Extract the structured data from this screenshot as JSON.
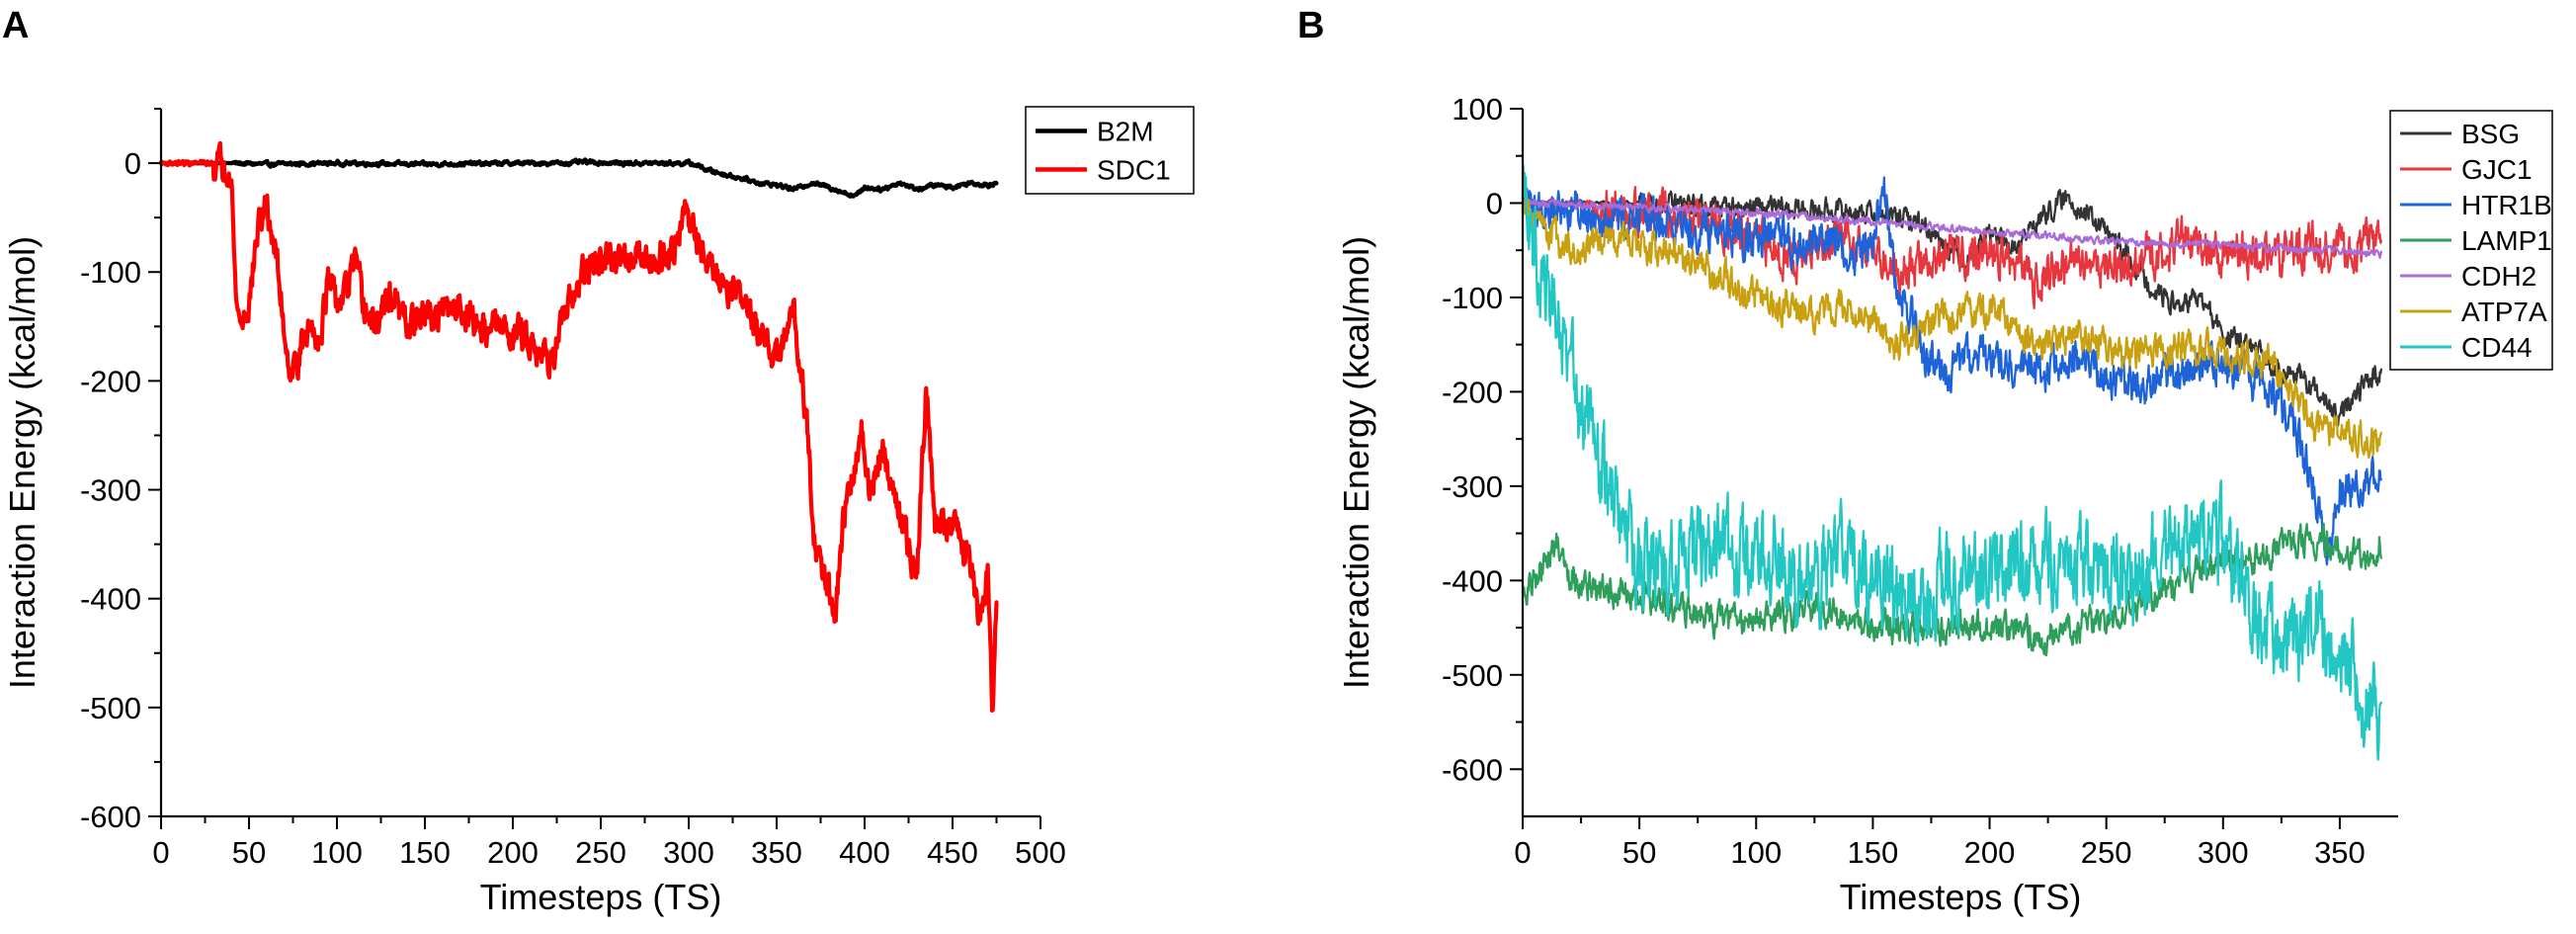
{
  "chart_data": [
    {
      "panel": "A",
      "type": "line",
      "title": "",
      "xlabel": "Timesteps (TS)",
      "ylabel": "Interaction Energy (kcal/mol)",
      "xlim": [
        0,
        500
      ],
      "ylim": [
        -600,
        50
      ],
      "xticks": [
        "0",
        "50",
        "100",
        "150",
        "200",
        "250",
        "300",
        "350",
        "400",
        "450",
        "500"
      ],
      "yticks": [
        "0",
        "-100",
        "-200",
        "-300",
        "-400",
        "-500",
        "-600"
      ],
      "legend": "top-right",
      "series": [
        {
          "name": "B2M",
          "color": "#000000",
          "noise": 1.5,
          "x": [
            0,
            40,
            60,
            100,
            150,
            200,
            230,
            240,
            260,
            300,
            305,
            310,
            320,
            330,
            340,
            350,
            360,
            370,
            380,
            390,
            395,
            400,
            410,
            420,
            430,
            440,
            450,
            460,
            470,
            475
          ],
          "y": [
            0,
            0,
            -1,
            0,
            -1,
            0,
            0,
            1,
            0,
            0,
            -2,
            -6,
            -10,
            -14,
            -18,
            -20,
            -24,
            -18,
            -22,
            -28,
            -30,
            -22,
            -24,
            -18,
            -24,
            -20,
            -22,
            -18,
            -20,
            -18
          ]
        },
        {
          "name": "SDC1",
          "color": "#ff0000",
          "noise": 12,
          "x": [
            0,
            30,
            40,
            42,
            45,
            50,
            55,
            60,
            65,
            70,
            72,
            75,
            80,
            85,
            90,
            95,
            100,
            105,
            110,
            115,
            120,
            125,
            130,
            140,
            150,
            160,
            170,
            180,
            190,
            200,
            210,
            220,
            225,
            230,
            240,
            250,
            260,
            270,
            280,
            290,
            298,
            300,
            305,
            310,
            320,
            330,
            340,
            350,
            360,
            365,
            368,
            372,
            378,
            383,
            388,
            393,
            398,
            403,
            410,
            420,
            430,
            435,
            440,
            450,
            460,
            465,
            470,
            473,
            475
          ],
          "y": [
            0,
            0,
            -2,
            -110,
            -150,
            -130,
            -60,
            -40,
            -80,
            -150,
            -180,
            -190,
            -170,
            -150,
            -160,
            -110,
            -130,
            -120,
            -90,
            -130,
            -150,
            -140,
            -120,
            -150,
            -140,
            -140,
            -130,
            -150,
            -150,
            -155,
            -160,
            -180,
            -170,
            -140,
            -100,
            -90,
            -90,
            -80,
            -90,
            -80,
            -40,
            -60,
            -70,
            -90,
            -110,
            -120,
            -160,
            -180,
            -140,
            -200,
            -260,
            -360,
            -380,
            -420,
            -330,
            -290,
            -240,
            -310,
            -260,
            -320,
            -380,
            -200,
            -330,
            -330,
            -370,
            -420,
            -380,
            -510,
            -390
          ]
        }
      ]
    },
    {
      "panel": "B",
      "type": "line",
      "title": "",
      "xlabel": "Timesteps (TS)",
      "ylabel": "Interaction Energy (kcal/mol)",
      "xlim": [
        0,
        375
      ],
      "ylim": [
        -650,
        100
      ],
      "xticks": [
        "0",
        "50",
        "100",
        "150",
        "200",
        "250",
        "300",
        "350"
      ],
      "yticks": [
        "100",
        "0",
        "-100",
        "-200",
        "-300",
        "-400",
        "-500",
        "-600"
      ],
      "legend": "top-right",
      "series": [
        {
          "name": "BSG",
          "color": "#333333",
          "noise": 9,
          "x": [
            0,
            50,
            100,
            150,
            170,
            180,
            190,
            200,
            210,
            220,
            230,
            235,
            240,
            250,
            260,
            270,
            280,
            290,
            300,
            310,
            320,
            330,
            340,
            350,
            360,
            368
          ],
          "y": [
            0,
            0,
            -5,
            -10,
            -20,
            -40,
            -60,
            -30,
            -50,
            -20,
            0,
            5,
            -10,
            -30,
            -60,
            -90,
            -110,
            -100,
            -140,
            -150,
            -170,
            -180,
            -200,
            -230,
            -190,
            -180
          ]
        },
        {
          "name": "GJC1",
          "color": "#e8363f",
          "noise": 18,
          "x": [
            0,
            30,
            60,
            80,
            100,
            120,
            140,
            150,
            160,
            180,
            200,
            220,
            240,
            260,
            280,
            300,
            320,
            340,
            350,
            360,
            368
          ],
          "y": [
            0,
            0,
            -10,
            -20,
            -40,
            -60,
            -30,
            -50,
            -70,
            -60,
            -50,
            -80,
            -60,
            -70,
            -40,
            -50,
            -60,
            -40,
            -50,
            -40,
            -40
          ]
        },
        {
          "name": "HTR1B",
          "color": "#1e64d8",
          "noise": 18,
          "x": [
            0,
            30,
            60,
            90,
            110,
            120,
            130,
            140,
            150,
            155,
            160,
            170,
            180,
            190,
            200,
            220,
            240,
            260,
            280,
            300,
            310,
            320,
            330,
            340,
            345,
            350,
            360,
            368
          ],
          "y": [
            0,
            -10,
            -20,
            -30,
            -40,
            -50,
            -30,
            -60,
            -40,
            10,
            -80,
            -150,
            -180,
            -170,
            -160,
            -180,
            -170,
            -190,
            -180,
            -170,
            -180,
            -200,
            -230,
            -310,
            -360,
            -300,
            -300,
            -280
          ]
        },
        {
          "name": "LAMP1",
          "color": "#2e9e5b",
          "noise": 13,
          "x": [
            0,
            5,
            10,
            15,
            20,
            30,
            50,
            80,
            100,
            120,
            150,
            180,
            200,
            220,
            250,
            270,
            280,
            300,
            310,
            320,
            330,
            340,
            350,
            360,
            368
          ],
          "y": [
            -420,
            -400,
            -380,
            -360,
            -390,
            -410,
            -420,
            -440,
            -440,
            -430,
            -450,
            -450,
            -450,
            -460,
            -440,
            -420,
            -400,
            -380,
            -380,
            -370,
            -360,
            -360,
            -370,
            -370,
            -360
          ]
        },
        {
          "name": "CDH2",
          "color": "#a96bd8",
          "noise": 3,
          "x": [
            0,
            50,
            100,
            150,
            200,
            250,
            300,
            350,
            368
          ],
          "y": [
            0,
            -5,
            -10,
            -20,
            -30,
            -40,
            -45,
            -50,
            -55
          ]
        },
        {
          "name": "ATP7A",
          "color": "#c9a00f",
          "noise": 14,
          "x": [
            0,
            10,
            20,
            40,
            60,
            80,
            100,
            120,
            140,
            160,
            180,
            200,
            220,
            240,
            260,
            280,
            300,
            320,
            330,
            340,
            350,
            360,
            368
          ],
          "y": [
            0,
            -30,
            -50,
            -40,
            -50,
            -70,
            -100,
            -120,
            -110,
            -150,
            -120,
            -110,
            -150,
            -140,
            -160,
            -150,
            -160,
            -170,
            -200,
            -240,
            -240,
            -250,
            -260
          ]
        },
        {
          "name": "CD44",
          "color": "#22c7c4",
          "noise": 38,
          "x": [
            0,
            5,
            10,
            15,
            20,
            30,
            40,
            50,
            60,
            80,
            100,
            120,
            140,
            150,
            160,
            170,
            180,
            200,
            220,
            240,
            260,
            280,
            290,
            300,
            310,
            320,
            330,
            340,
            350,
            360,
            368
          ],
          "y": [
            0,
            -40,
            -80,
            -130,
            -180,
            -250,
            -320,
            -380,
            -400,
            -360,
            -380,
            -400,
            -370,
            -400,
            -420,
            -430,
            -400,
            -390,
            -380,
            -380,
            -400,
            -360,
            -350,
            -360,
            -420,
            -460,
            -470,
            -440,
            -480,
            -520,
            -550
          ]
        }
      ]
    }
  ]
}
